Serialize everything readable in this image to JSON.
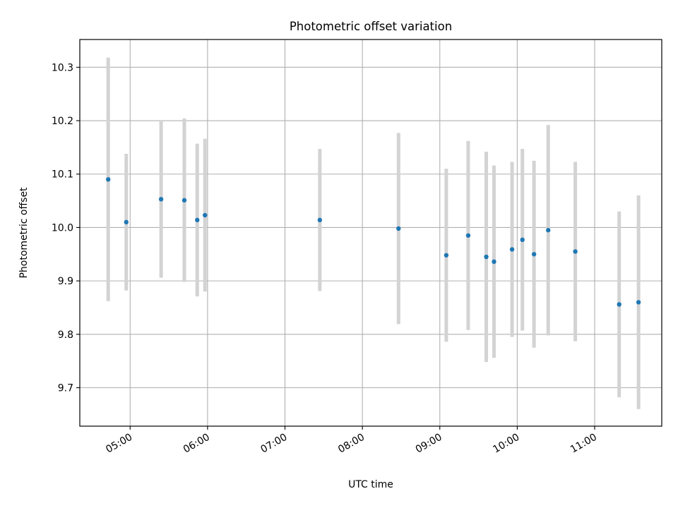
{
  "chart_data": {
    "type": "scatter",
    "title": "Photometric offset variation",
    "xlabel": "UTC time",
    "ylabel": "Photometric offset",
    "x_ticks": [
      "05:00",
      "06:00",
      "07:00",
      "08:00",
      "09:00",
      "10:00",
      "11:00"
    ],
    "y_ticks": [
      "9.7",
      "9.8",
      "9.9",
      "10.0",
      "10.1",
      "10.2",
      "10.3"
    ],
    "xlim": [
      "04:21",
      "11:52"
    ],
    "ylim": [
      9.628,
      10.352
    ],
    "grid": true,
    "colors": {
      "points": "#1f77b4",
      "errorbars": "#d3d3d3",
      "grid": "#b0b0b0"
    },
    "points": [
      {
        "time": "04:43",
        "y": 10.09,
        "err": 0.228
      },
      {
        "time": "04:57",
        "y": 10.01,
        "err": 0.128
      },
      {
        "time": "05:24",
        "y": 10.053,
        "err": 0.147
      },
      {
        "time": "05:42",
        "y": 10.051,
        "err": 0.153
      },
      {
        "time": "05:52",
        "y": 10.014,
        "err": 0.143
      },
      {
        "time": "05:58",
        "y": 10.023,
        "err": 0.143
      },
      {
        "time": "07:27",
        "y": 10.014,
        "err": 0.133
      },
      {
        "time": "08:28",
        "y": 9.998,
        "err": 0.179
      },
      {
        "time": "09:05",
        "y": 9.948,
        "err": 0.162
      },
      {
        "time": "09:22",
        "y": 9.985,
        "err": 0.177
      },
      {
        "time": "09:36",
        "y": 9.945,
        "err": 0.197
      },
      {
        "time": "09:42",
        "y": 9.936,
        "err": 0.18
      },
      {
        "time": "09:56",
        "y": 9.959,
        "err": 0.164
      },
      {
        "time": "10:04",
        "y": 9.977,
        "err": 0.17
      },
      {
        "time": "10:13",
        "y": 9.95,
        "err": 0.175
      },
      {
        "time": "10:24",
        "y": 9.995,
        "err": 0.197
      },
      {
        "time": "10:45",
        "y": 9.955,
        "err": 0.168
      },
      {
        "time": "11:19",
        "y": 9.856,
        "err": 0.174
      },
      {
        "time": "11:34",
        "y": 9.86,
        "err": 0.2
      }
    ]
  }
}
